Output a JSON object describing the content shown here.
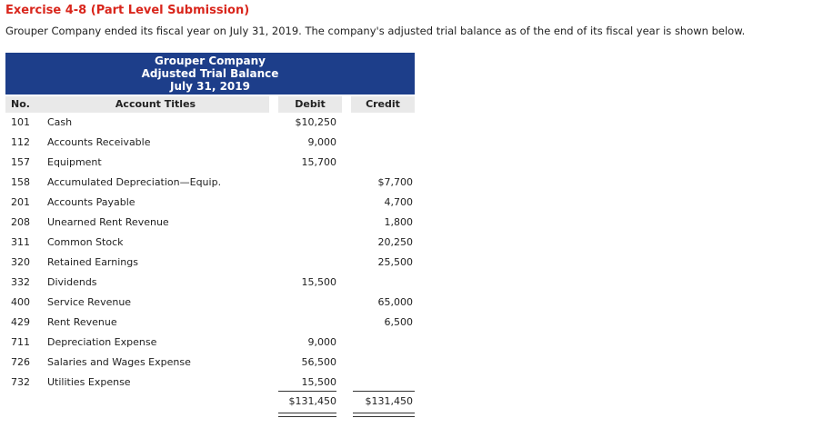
{
  "exercise": {
    "title": "Exercise 4-8 (Part Level Submission)",
    "intro": "Grouper Company ended its fiscal year on July 31, 2019. The company's adjusted trial balance as of the end of its fiscal year is shown below."
  },
  "trial_balance": {
    "company": "Grouper Company",
    "statement": "Adjusted Trial Balance",
    "date": "July 31, 2019",
    "headers": {
      "no": "No.",
      "titles": "Account Titles",
      "debit": "Debit",
      "credit": "Credit"
    },
    "rows": [
      {
        "no": "101",
        "title": "Cash",
        "debit": "$10,250",
        "credit": ""
      },
      {
        "no": "112",
        "title": "Accounts Receivable",
        "debit": "9,000",
        "credit": ""
      },
      {
        "no": "157",
        "title": "Equipment",
        "debit": "15,700",
        "credit": ""
      },
      {
        "no": "158",
        "title": "Accumulated Depreciation—Equip.",
        "debit": "",
        "credit": "$7,700"
      },
      {
        "no": "201",
        "title": "Accounts Payable",
        "debit": "",
        "credit": "4,700"
      },
      {
        "no": "208",
        "title": "Unearned Rent Revenue",
        "debit": "",
        "credit": "1,800"
      },
      {
        "no": "311",
        "title": "Common Stock",
        "debit": "",
        "credit": "20,250"
      },
      {
        "no": "320",
        "title": "Retained Earnings",
        "debit": "",
        "credit": "25,500"
      },
      {
        "no": "332",
        "title": "Dividends",
        "debit": "15,500",
        "credit": ""
      },
      {
        "no": "400",
        "title": "Service Revenue",
        "debit": "",
        "credit": "65,000"
      },
      {
        "no": "429",
        "title": "Rent Revenue",
        "debit": "",
        "credit": "6,500"
      },
      {
        "no": "711",
        "title": "Depreciation Expense",
        "debit": "9,000",
        "credit": ""
      },
      {
        "no": "726",
        "title": "Salaries and Wages Expense",
        "debit": "56,500",
        "credit": ""
      },
      {
        "no": "732",
        "title": "Utilities Expense",
        "debit": "15,500",
        "credit": ""
      }
    ],
    "totals": {
      "debit": "$131,450",
      "credit": "$131,450"
    }
  }
}
